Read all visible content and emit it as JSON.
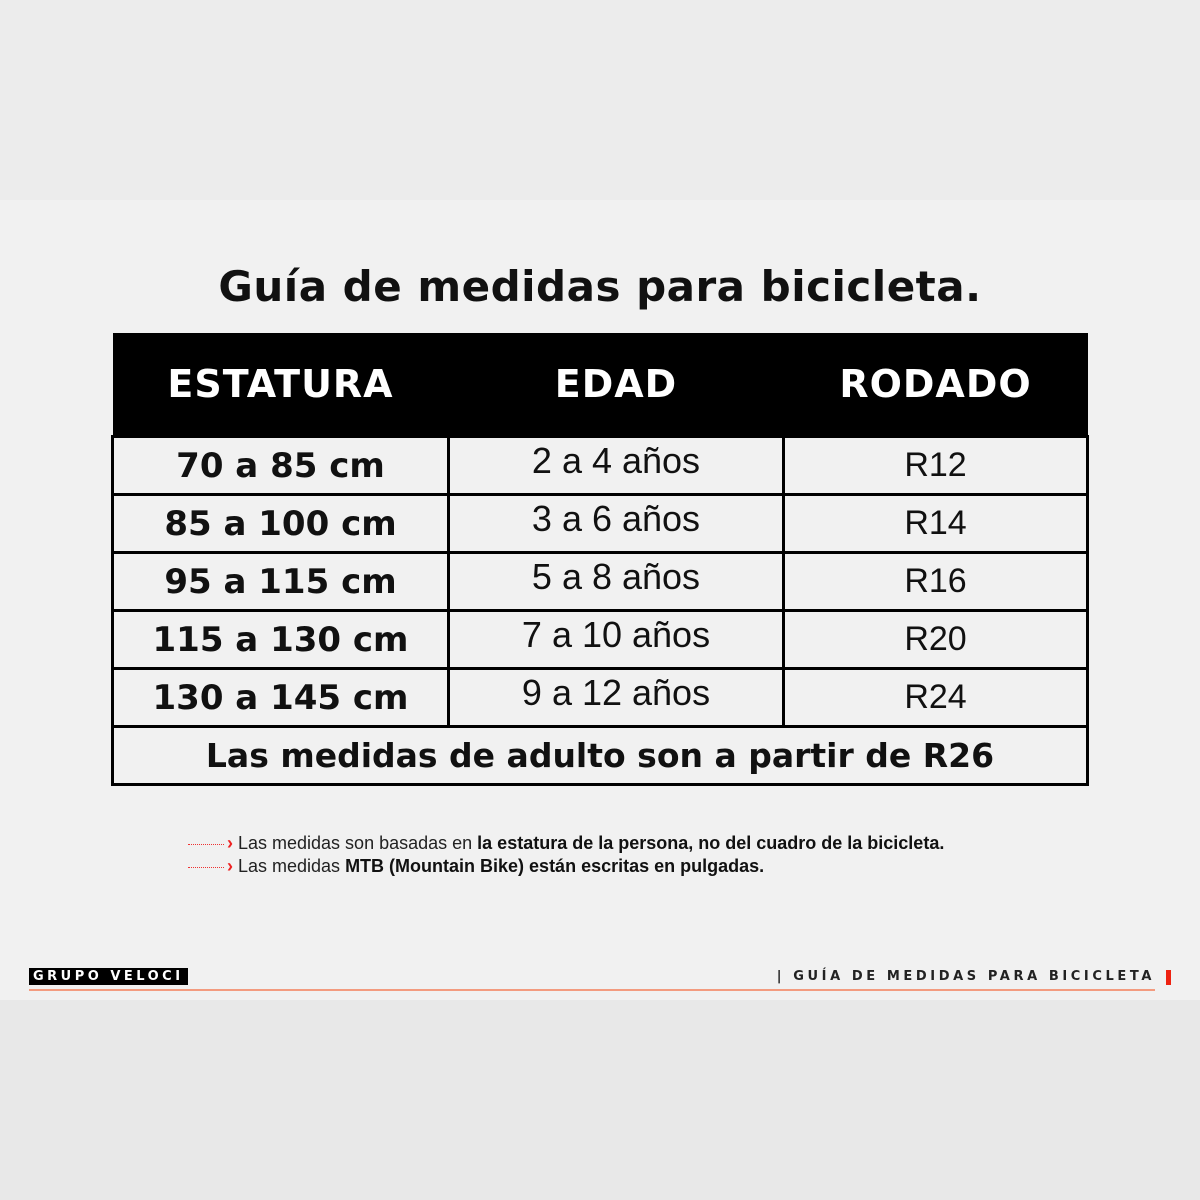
{
  "title": "Guía de medidas para bicicleta.",
  "table": {
    "headers": [
      "ESTATURA",
      "EDAD",
      "RODADO"
    ],
    "rows": [
      [
        "70 a 85 cm",
        "2 a 4 años",
        "R12"
      ],
      [
        "85 a 100 cm",
        "3 a 6 años",
        "R14"
      ],
      [
        "95 a 115 cm",
        "5 a 8 años",
        "R16"
      ],
      [
        "115 a 130 cm",
        "7 a 10 años",
        "R20"
      ],
      [
        "130 a 145 cm",
        "9 a 12 años",
        "R24"
      ]
    ],
    "footer_row": "Las medidas de adulto son a partir de R26"
  },
  "notes": [
    {
      "prefix": "Las medidas son basadas en ",
      "bold": "la estatura de la persona, no del cuadro de la bicicleta.",
      "suffix": ""
    },
    {
      "prefix": "Las medidas ",
      "bold": "MTB (Mountain Bike) están escritas en pulgadas.",
      "suffix": ""
    }
  ],
  "footer": {
    "brand": "GRUPO VELOCI",
    "title": "| GUÍA DE MEDIDAS PARA BICICLETA"
  },
  "colors": {
    "accent": "#e22222",
    "footer_line": "#f39b7f",
    "header_bg": "#000000"
  }
}
